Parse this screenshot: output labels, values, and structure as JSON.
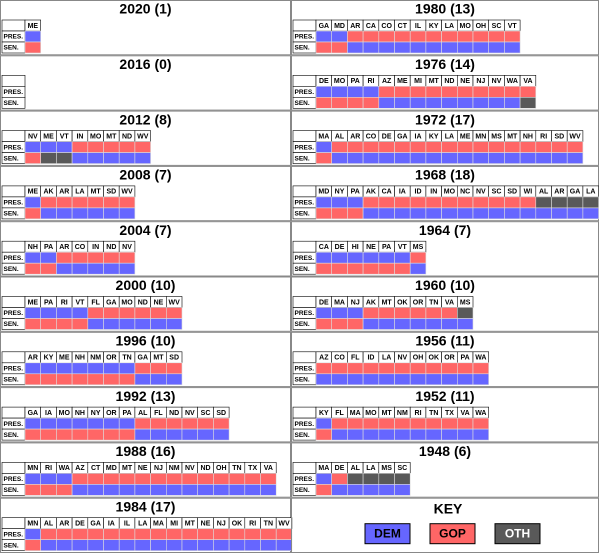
{
  "row_labels": {
    "pres": "PRES.",
    "sen": "SEN."
  },
  "key": {
    "title": "KEY",
    "items": [
      {
        "label": "DEM",
        "color": "#6666ff"
      },
      {
        "label": "GOP",
        "color": "#ff6666"
      },
      {
        "label": "OTH",
        "color": "#595959"
      }
    ]
  },
  "panels": [
    {
      "title": "2020 (1)",
      "states": [
        "ME"
      ],
      "pres": [
        "DEM"
      ],
      "sen": [
        "GOP"
      ]
    },
    {
      "title": "2016 (0)",
      "states": [],
      "pres": [],
      "sen": []
    },
    {
      "title": "2012 (8)",
      "states": [
        "NV",
        "ME",
        "VT",
        "IN",
        "MO",
        "MT",
        "ND",
        "WV"
      ],
      "pres": [
        "DEM",
        "DEM",
        "DEM",
        "GOP",
        "GOP",
        "GOP",
        "GOP",
        "GOP"
      ],
      "sen": [
        "GOP",
        "OTH",
        "OTH",
        "DEM",
        "DEM",
        "DEM",
        "DEM",
        "DEM"
      ]
    },
    {
      "title": "2008 (7)",
      "states": [
        "ME",
        "AK",
        "AR",
        "LA",
        "MT",
        "SD",
        "WV"
      ],
      "pres": [
        "DEM",
        "GOP",
        "GOP",
        "GOP",
        "GOP",
        "GOP",
        "GOP"
      ],
      "sen": [
        "GOP",
        "DEM",
        "DEM",
        "DEM",
        "DEM",
        "DEM",
        "DEM"
      ]
    },
    {
      "title": "2004 (7)",
      "states": [
        "NH",
        "PA",
        "AR",
        "CO",
        "IN",
        "ND",
        "NV"
      ],
      "pres": [
        "DEM",
        "DEM",
        "GOP",
        "GOP",
        "GOP",
        "GOP",
        "GOP"
      ],
      "sen": [
        "GOP",
        "GOP",
        "DEM",
        "DEM",
        "DEM",
        "DEM",
        "DEM"
      ]
    },
    {
      "title": "2000 (10)",
      "states": [
        "ME",
        "PA",
        "RI",
        "VT",
        "FL",
        "GA",
        "MO",
        "ND",
        "NE",
        "WV"
      ],
      "pres": [
        "DEM",
        "DEM",
        "DEM",
        "DEM",
        "GOP",
        "GOP",
        "GOP",
        "GOP",
        "GOP",
        "GOP"
      ],
      "sen": [
        "GOP",
        "GOP",
        "GOP",
        "GOP",
        "DEM",
        "DEM",
        "DEM",
        "DEM",
        "DEM",
        "DEM"
      ]
    },
    {
      "title": "1996 (10)",
      "states": [
        "AR",
        "KY",
        "ME",
        "NH",
        "NM",
        "OR",
        "TN",
        "GA",
        "MT",
        "SD"
      ],
      "pres": [
        "DEM",
        "DEM",
        "DEM",
        "DEM",
        "DEM",
        "DEM",
        "DEM",
        "GOP",
        "GOP",
        "GOP"
      ],
      "sen": [
        "GOP",
        "GOP",
        "GOP",
        "GOP",
        "GOP",
        "GOP",
        "GOP",
        "DEM",
        "DEM",
        "DEM"
      ]
    },
    {
      "title": "1992 (13)",
      "states": [
        "GA",
        "IA",
        "MO",
        "NH",
        "NY",
        "OR",
        "PA",
        "AL",
        "FL",
        "ND",
        "NV",
        "SC",
        "SD"
      ],
      "pres": [
        "DEM",
        "DEM",
        "DEM",
        "DEM",
        "DEM",
        "DEM",
        "DEM",
        "GOP",
        "GOP",
        "GOP",
        "GOP",
        "GOP",
        "GOP"
      ],
      "sen": [
        "GOP",
        "GOP",
        "GOP",
        "GOP",
        "GOP",
        "GOP",
        "GOP",
        "DEM",
        "DEM",
        "DEM",
        "DEM",
        "DEM",
        "DEM"
      ]
    },
    {
      "title": "1988 (16)",
      "states": [
        "MN",
        "RI",
        "WA",
        "AZ",
        "CT",
        "MD",
        "MT",
        "NE",
        "NJ",
        "NM",
        "NV",
        "ND",
        "OH",
        "TN",
        "TX",
        "VA"
      ],
      "pres": [
        "DEM",
        "DEM",
        "DEM",
        "GOP",
        "GOP",
        "GOP",
        "GOP",
        "GOP",
        "GOP",
        "GOP",
        "GOP",
        "GOP",
        "GOP",
        "GOP",
        "GOP",
        "GOP"
      ],
      "sen": [
        "GOP",
        "GOP",
        "GOP",
        "DEM",
        "DEM",
        "DEM",
        "DEM",
        "DEM",
        "DEM",
        "DEM",
        "DEM",
        "DEM",
        "DEM",
        "DEM",
        "DEM",
        "DEM"
      ]
    },
    {
      "title": "1984 (17)",
      "states": [
        "MN",
        "AL",
        "AR",
        "DE",
        "GA",
        "IA",
        "IL",
        "LA",
        "MA",
        "MI",
        "MT",
        "NE",
        "NJ",
        "OK",
        "RI",
        "TN",
        "WV"
      ],
      "pres": [
        "DEM",
        "GOP",
        "GOP",
        "GOP",
        "GOP",
        "GOP",
        "GOP",
        "GOP",
        "GOP",
        "GOP",
        "GOP",
        "GOP",
        "GOP",
        "GOP",
        "GOP",
        "GOP",
        "GOP"
      ],
      "sen": [
        "GOP",
        "DEM",
        "DEM",
        "DEM",
        "DEM",
        "DEM",
        "DEM",
        "DEM",
        "DEM",
        "DEM",
        "DEM",
        "DEM",
        "DEM",
        "DEM",
        "DEM",
        "DEM",
        "DEM"
      ]
    },
    {
      "title": "1980 (13)",
      "states": [
        "GA",
        "MD",
        "AR",
        "CA",
        "CO",
        "CT",
        "IL",
        "KY",
        "LA",
        "MO",
        "OH",
        "SC",
        "VT"
      ],
      "pres": [
        "DEM",
        "DEM",
        "GOP",
        "GOP",
        "GOP",
        "GOP",
        "GOP",
        "GOP",
        "GOP",
        "GOP",
        "GOP",
        "GOP",
        "GOP"
      ],
      "sen": [
        "GOP",
        "GOP",
        "DEM",
        "DEM",
        "DEM",
        "DEM",
        "DEM",
        "DEM",
        "DEM",
        "DEM",
        "DEM",
        "DEM",
        "DEM"
      ]
    },
    {
      "title": "1976 (14)",
      "states": [
        "DE",
        "MO",
        "PA",
        "RI",
        "AZ",
        "ME",
        "MI",
        "MT",
        "ND",
        "NE",
        "NJ",
        "NV",
        "WA",
        "VA"
      ],
      "pres": [
        "DEM",
        "DEM",
        "DEM",
        "DEM",
        "GOP",
        "GOP",
        "GOP",
        "GOP",
        "GOP",
        "GOP",
        "GOP",
        "GOP",
        "GOP",
        "GOP"
      ],
      "sen": [
        "GOP",
        "GOP",
        "GOP",
        "GOP",
        "DEM",
        "DEM",
        "DEM",
        "DEM",
        "DEM",
        "DEM",
        "DEM",
        "DEM",
        "DEM",
        "OTH"
      ]
    },
    {
      "title": "1972 (17)",
      "states": [
        "MA",
        "AL",
        "AR",
        "CO",
        "DE",
        "GA",
        "IA",
        "KY",
        "LA",
        "ME",
        "MN",
        "MS",
        "MT",
        "NH",
        "RI",
        "SD",
        "WV"
      ],
      "pres": [
        "DEM",
        "GOP",
        "GOP",
        "GOP",
        "GOP",
        "GOP",
        "GOP",
        "GOP",
        "GOP",
        "GOP",
        "GOP",
        "GOP",
        "GOP",
        "GOP",
        "GOP",
        "GOP",
        "GOP"
      ],
      "sen": [
        "GOP",
        "DEM",
        "DEM",
        "DEM",
        "DEM",
        "DEM",
        "DEM",
        "DEM",
        "DEM",
        "DEM",
        "DEM",
        "DEM",
        "DEM",
        "DEM",
        "DEM",
        "DEM",
        "DEM"
      ]
    },
    {
      "title": "1968 (18)",
      "states": [
        "MD",
        "NY",
        "PA",
        "AK",
        "CA",
        "IA",
        "ID",
        "IN",
        "MO",
        "NC",
        "NV",
        "SC",
        "SD",
        "WI",
        "AL",
        "AR",
        "GA",
        "LA"
      ],
      "pres": [
        "DEM",
        "DEM",
        "DEM",
        "GOP",
        "GOP",
        "GOP",
        "GOP",
        "GOP",
        "GOP",
        "GOP",
        "GOP",
        "GOP",
        "GOP",
        "GOP",
        "OTH",
        "OTH",
        "OTH",
        "OTH"
      ],
      "sen": [
        "GOP",
        "GOP",
        "GOP",
        "DEM",
        "DEM",
        "DEM",
        "DEM",
        "DEM",
        "DEM",
        "DEM",
        "DEM",
        "DEM",
        "DEM",
        "DEM",
        "DEM",
        "DEM",
        "DEM",
        "DEM"
      ]
    },
    {
      "title": "1964 (7)",
      "states": [
        "CA",
        "DE",
        "HI",
        "NE",
        "PA",
        "VT",
        "MS"
      ],
      "pres": [
        "DEM",
        "DEM",
        "DEM",
        "DEM",
        "DEM",
        "DEM",
        "GOP"
      ],
      "sen": [
        "GOP",
        "GOP",
        "GOP",
        "GOP",
        "GOP",
        "GOP",
        "DEM"
      ]
    },
    {
      "title": "1960 (10)",
      "states": [
        "DE",
        "MA",
        "NJ",
        "AK",
        "MT",
        "OK",
        "OR",
        "TN",
        "VA",
        "MS"
      ],
      "pres": [
        "DEM",
        "DEM",
        "DEM",
        "GOP",
        "GOP",
        "GOP",
        "GOP",
        "GOP",
        "GOP",
        "OTH"
      ],
      "sen": [
        "GOP",
        "GOP",
        "GOP",
        "DEM",
        "DEM",
        "DEM",
        "DEM",
        "DEM",
        "DEM",
        "DEM"
      ]
    },
    {
      "title": "1956 (11)",
      "states": [
        "AZ",
        "CO",
        "FL",
        "ID",
        "LA",
        "NV",
        "OH",
        "OK",
        "OR",
        "PA",
        "WA"
      ],
      "pres": [
        "GOP",
        "GOP",
        "GOP",
        "GOP",
        "GOP",
        "GOP",
        "GOP",
        "GOP",
        "GOP",
        "GOP",
        "GOP"
      ],
      "sen": [
        "DEM",
        "DEM",
        "DEM",
        "DEM",
        "DEM",
        "DEM",
        "DEM",
        "DEM",
        "DEM",
        "DEM",
        "DEM"
      ]
    },
    {
      "title": "1952 (11)",
      "states": [
        "KY",
        "FL",
        "MA",
        "MO",
        "MT",
        "NM",
        "RI",
        "TN",
        "TX",
        "VA",
        "WA"
      ],
      "pres": [
        "DEM",
        "GOP",
        "GOP",
        "GOP",
        "GOP",
        "GOP",
        "GOP",
        "GOP",
        "GOP",
        "GOP",
        "GOP"
      ],
      "sen": [
        "GOP",
        "DEM",
        "DEM",
        "DEM",
        "DEM",
        "DEM",
        "DEM",
        "DEM",
        "DEM",
        "DEM",
        "DEM"
      ]
    },
    {
      "title": "1948 (6)",
      "states": [
        "MA",
        "DE",
        "AL",
        "LA",
        "MS",
        "SC"
      ],
      "pres": [
        "DEM",
        "GOP",
        "OTH",
        "OTH",
        "OTH",
        "OTH"
      ],
      "sen": [
        "GOP",
        "DEM",
        "DEM",
        "DEM",
        "DEM",
        "DEM"
      ]
    }
  ]
}
